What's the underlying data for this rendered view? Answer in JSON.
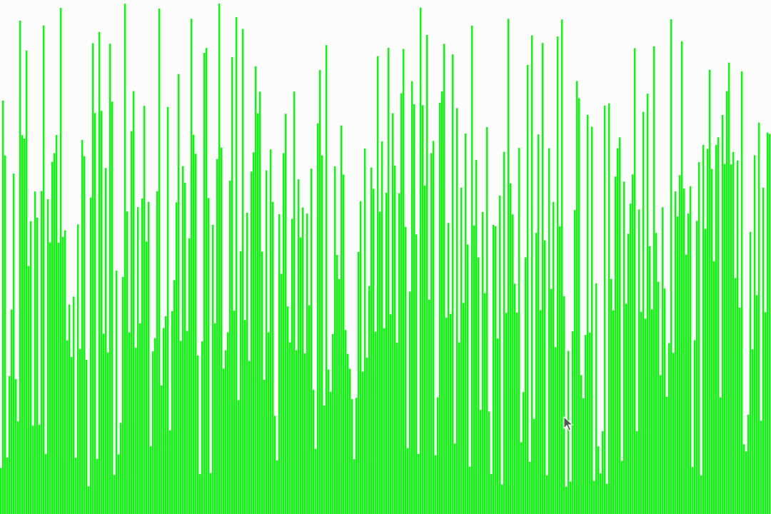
{
  "window": {
    "title": ""
  },
  "chart_data": {
    "type": "bar",
    "bar_count": 360,
    "background_color": "#fcfcfc",
    "bar_color": "#00ff00",
    "xlabel": "",
    "ylabel": "",
    "ylim": [
      0,
      1
    ],
    "grid": false,
    "legend": "none",
    "generator_seed": 20240611
  },
  "cursor": {
    "icon": "arrow-pointer-icon",
    "color": "#555555"
  }
}
